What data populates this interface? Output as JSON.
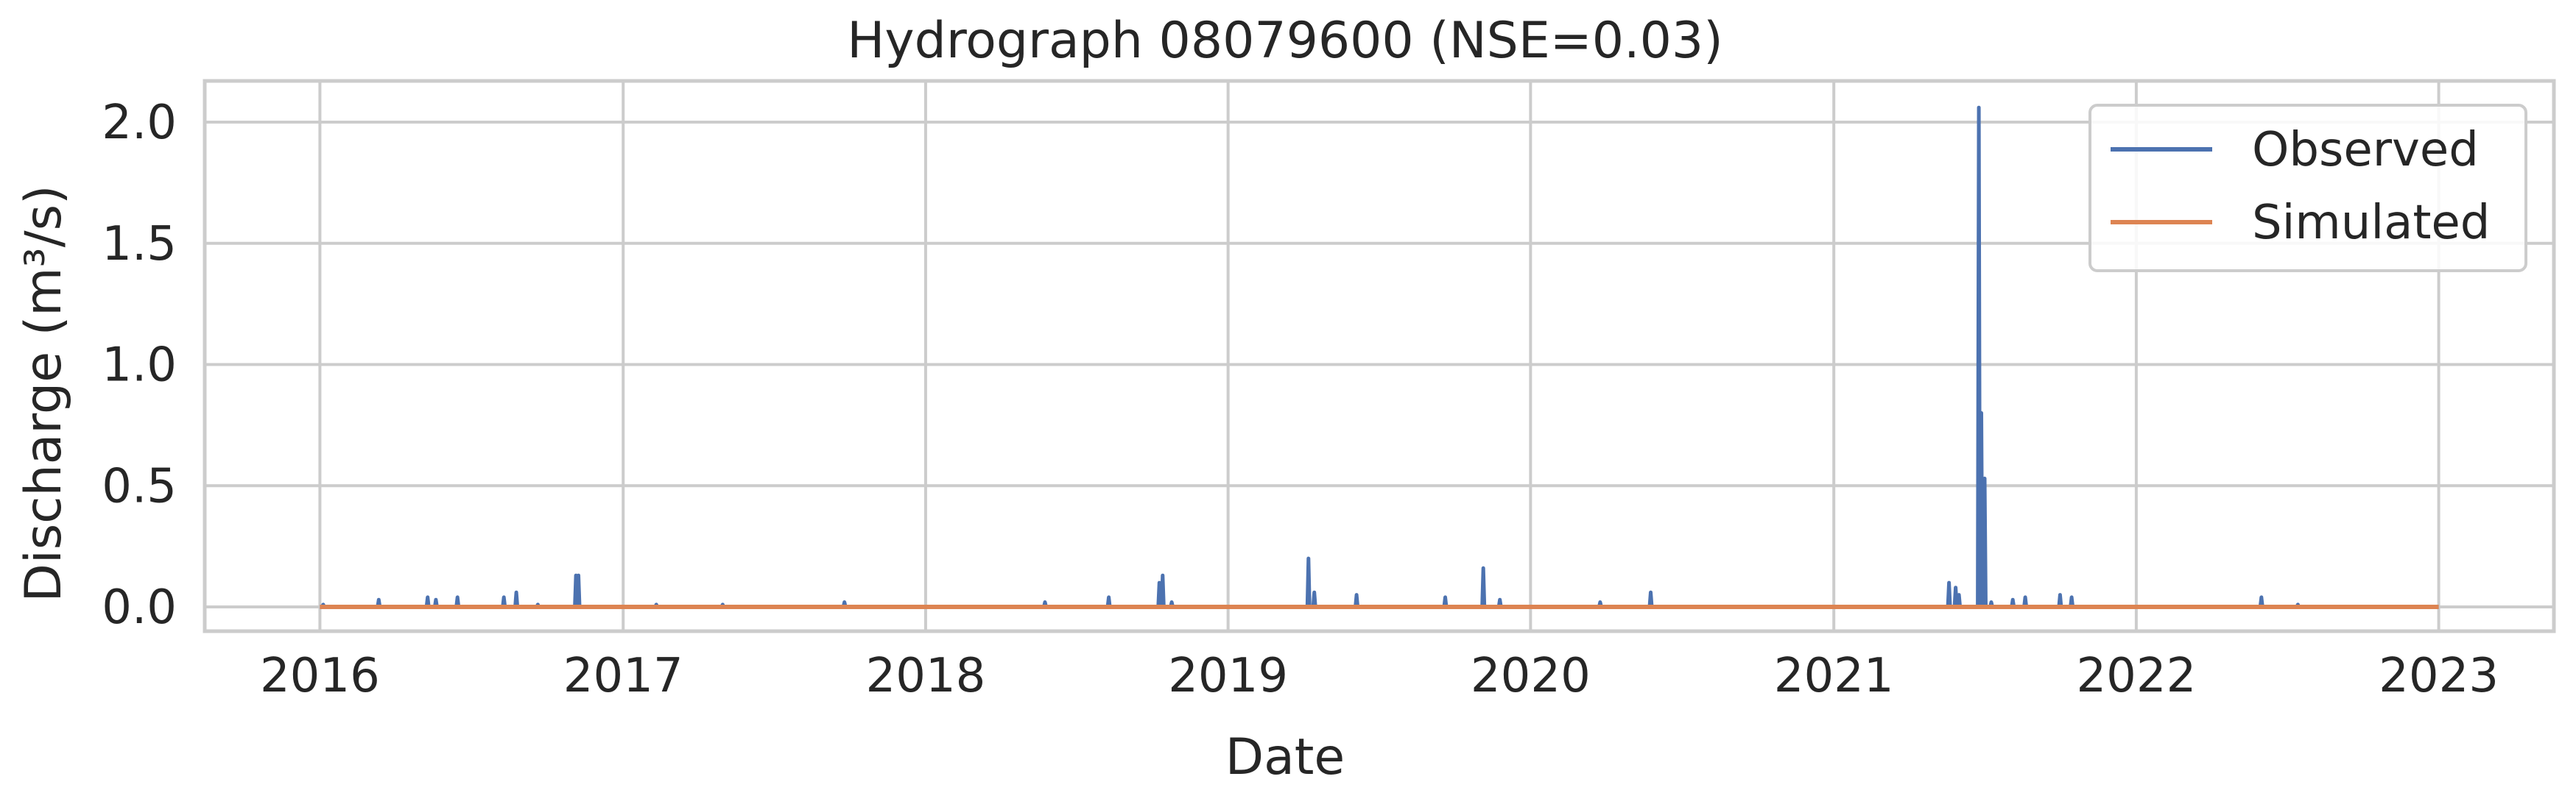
{
  "chart_data": {
    "type": "line",
    "title": "Hydrograph 08079600  (NSE=0.03)",
    "xlabel": "Date",
    "ylabel": "Discharge (m³/s)",
    "xlim": [
      "2015-08-15",
      "2023-05-20"
    ],
    "ylim": [
      -0.1,
      2.17
    ],
    "x_ticks": [
      "2016",
      "2017",
      "2018",
      "2019",
      "2020",
      "2021",
      "2022",
      "2023"
    ],
    "x_tick_dates": [
      "2016-01-01",
      "2017-01-01",
      "2018-01-01",
      "2019-01-01",
      "2020-01-01",
      "2021-01-01",
      "2022-01-01",
      "2023-01-01"
    ],
    "y_ticks": [
      0.0,
      0.5,
      1.0,
      1.5,
      2.0
    ],
    "y_tick_labels": [
      "0.0",
      "0.5",
      "1.0",
      "1.5",
      "2.0"
    ],
    "grid": true,
    "legend_position": "top-right",
    "date_range": [
      "2016-01-01",
      "2023-01-01"
    ],
    "colors": {
      "observed": "#4c72b0",
      "simulated": "#dd8452",
      "grid": "#cccccc"
    },
    "series": [
      {
        "name": "Observed",
        "baseline": 0.0,
        "peaks": [
          [
            "2016-01-05",
            0.01
          ],
          [
            "2016-03-12",
            0.03
          ],
          [
            "2016-05-10",
            0.04
          ],
          [
            "2016-05-20",
            0.03
          ],
          [
            "2016-06-15",
            0.04
          ],
          [
            "2016-08-10",
            0.04
          ],
          [
            "2016-08-25",
            0.06
          ],
          [
            "2016-09-20",
            0.01
          ],
          [
            "2016-11-05",
            0.13
          ],
          [
            "2016-11-08",
            0.13
          ],
          [
            "2017-02-10",
            0.01
          ],
          [
            "2017-05-01",
            0.01
          ],
          [
            "2017-09-25",
            0.02
          ],
          [
            "2018-05-25",
            0.02
          ],
          [
            "2018-08-10",
            0.04
          ],
          [
            "2018-10-10",
            0.1
          ],
          [
            "2018-10-14",
            0.13
          ],
          [
            "2018-10-25",
            0.02
          ],
          [
            "2019-04-08",
            0.2
          ],
          [
            "2019-04-15",
            0.06
          ],
          [
            "2019-06-05",
            0.05
          ],
          [
            "2019-09-20",
            0.04
          ],
          [
            "2019-11-05",
            0.16
          ],
          [
            "2019-11-25",
            0.03
          ],
          [
            "2020-05-25",
            0.06
          ],
          [
            "2020-03-25",
            0.02
          ],
          [
            "2021-05-20",
            0.1
          ],
          [
            "2021-05-28",
            0.08
          ],
          [
            "2021-06-01",
            0.05
          ],
          [
            "2021-06-25",
            2.06
          ],
          [
            "2021-06-28",
            0.8
          ],
          [
            "2021-07-02",
            0.53
          ],
          [
            "2021-07-10",
            0.02
          ],
          [
            "2021-08-05",
            0.03
          ],
          [
            "2021-08-20",
            0.04
          ],
          [
            "2021-10-01",
            0.05
          ],
          [
            "2021-10-15",
            0.04
          ],
          [
            "2022-06-01",
            0.04
          ],
          [
            "2022-07-15",
            0.01
          ]
        ]
      },
      {
        "name": "Simulated",
        "constant_value": 0.0
      }
    ]
  }
}
